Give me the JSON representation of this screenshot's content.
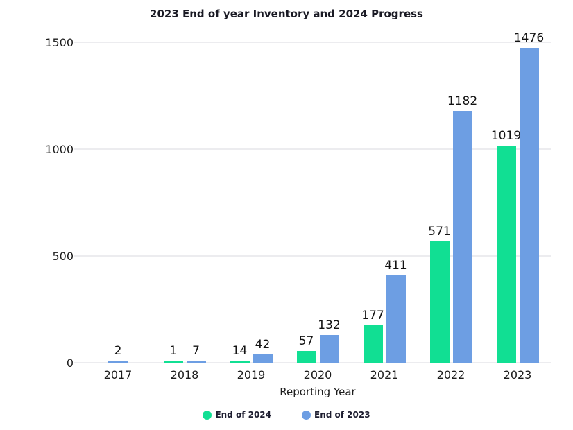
{
  "chart_data": {
    "type": "bar",
    "title": "2023 End of year Inventory and 2024 Progress",
    "xlabel": "Reporting Year",
    "ylabel": "",
    "categories": [
      "2017",
      "2018",
      "2019",
      "2020",
      "2021",
      "2022",
      "2023"
    ],
    "series": [
      {
        "name": "End of 2024",
        "color": "#11df93",
        "values": [
          null,
          1,
          14,
          57,
          177,
          571,
          1019
        ]
      },
      {
        "name": "End of 2023",
        "color": "#6d9ee3",
        "values": [
          2,
          7,
          42,
          132,
          411,
          1182,
          1476
        ]
      }
    ],
    "ylim": [
      0,
      1500
    ],
    "yticks": [
      0,
      500,
      1000,
      1500
    ],
    "grid": "horizontal",
    "gridline_color": "#ececef",
    "legend_position": "bottom",
    "data_labels": true
  }
}
